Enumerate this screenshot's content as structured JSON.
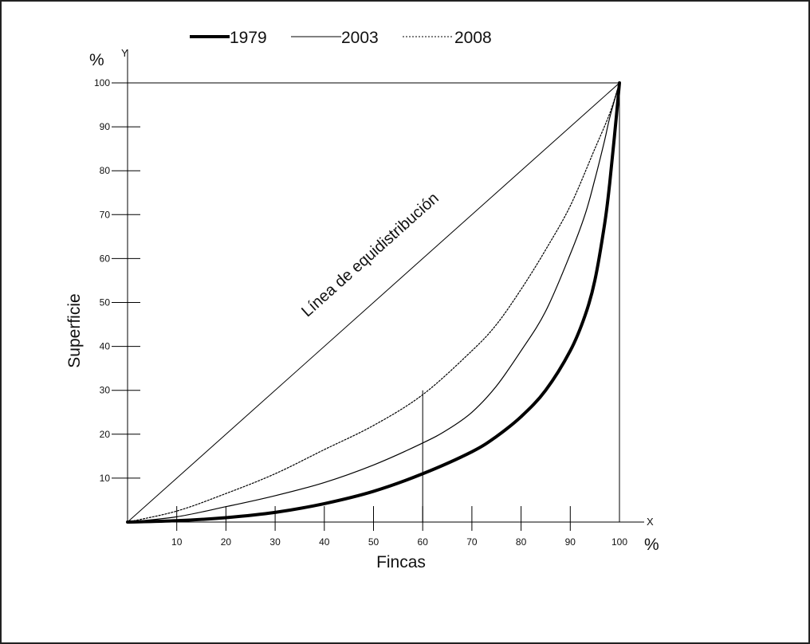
{
  "chart_data": {
    "type": "line",
    "xlabel": "Fincas",
    "ylabel": "Superficie",
    "x_axis_letter": "X",
    "y_axis_letter": "Y",
    "x_unit": "%",
    "y_unit": "%",
    "xlim": [
      0,
      100
    ],
    "ylim": [
      0,
      100
    ],
    "x_ticks": [
      10,
      20,
      30,
      40,
      50,
      60,
      70,
      80,
      90,
      100
    ],
    "y_ticks": [
      10,
      20,
      30,
      40,
      50,
      60,
      70,
      80,
      90,
      100
    ],
    "grid": false,
    "legend_position": "top",
    "annotations": [
      {
        "text": "Línea de equidistribución",
        "x": 50,
        "y": 60
      }
    ],
    "marker_line": {
      "x": 60,
      "y": 30
    },
    "series": [
      {
        "name": "1979",
        "style": "thick-solid",
        "x": [
          0,
          10,
          20,
          30,
          40,
          50,
          60,
          70,
          75,
          80,
          85,
          90,
          93,
          95,
          97,
          98,
          99,
          100
        ],
        "y": [
          0,
          0.3,
          1,
          2.2,
          4.2,
          7,
          11,
          16,
          19.5,
          24,
          30,
          39,
          47,
          55,
          68,
          77,
          88,
          100
        ]
      },
      {
        "name": "2003",
        "style": "thin-solid",
        "x": [
          0,
          10,
          20,
          30,
          40,
          50,
          60,
          65,
          70,
          75,
          80,
          85,
          90,
          93,
          95,
          97,
          98,
          100
        ],
        "y": [
          0,
          1.2,
          3.5,
          6,
          9,
          13,
          18,
          21,
          25,
          31,
          39,
          48,
          61,
          70,
          78,
          87,
          92,
          100
        ]
      },
      {
        "name": "2008",
        "style": "dotted",
        "x": [
          0,
          10,
          20,
          30,
          40,
          50,
          60,
          70,
          75,
          80,
          85,
          90,
          95,
          98,
          100
        ],
        "y": [
          0,
          2.5,
          6.5,
          11,
          16.5,
          22,
          29,
          39,
          45,
          53,
          62,
          72,
          85,
          93,
          100
        ]
      }
    ]
  }
}
